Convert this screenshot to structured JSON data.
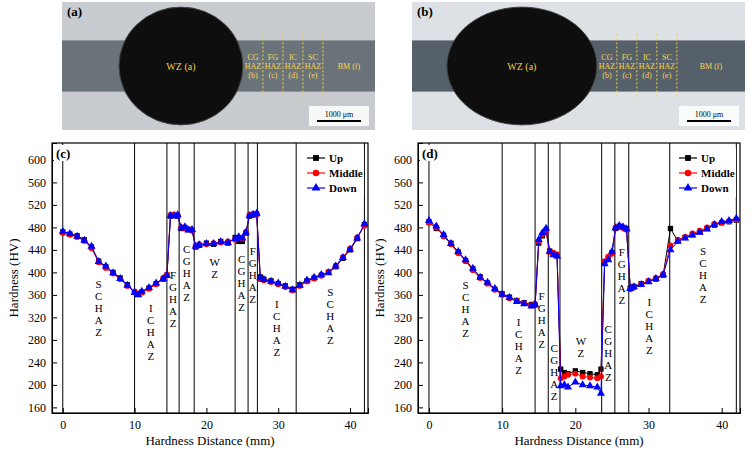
{
  "photos": [
    {
      "letter": "(a)",
      "weld_label": "WZ (a)",
      "zone_labels": [
        "CG HAZ (b)",
        "FG HAZ (c)",
        "IC HAZ (d)",
        "SC HAZ (e)"
      ],
      "base_label": "BM (f)",
      "scale_bar": "1000 μm"
    },
    {
      "letter": "(b)",
      "weld_label": "WZ (a)",
      "zone_labels": [
        "CG HAZ (b)",
        "FG HAZ (c)",
        "IC HAZ (d)",
        "SC HAZ (e)"
      ],
      "base_label": "BM (f)",
      "scale_bar": "1000 μm"
    }
  ],
  "chart_data": [
    {
      "type": "line",
      "panel_label": "(c)",
      "x_label": "Hardness Distance (mm)",
      "y_label": "Hardness (HV)",
      "xlim": [
        -1.5,
        42.5
      ],
      "xticks": [
        0,
        10,
        20,
        30,
        40
      ],
      "ylim": [
        150,
        630
      ],
      "yticks": [
        160,
        200,
        240,
        280,
        320,
        360,
        400,
        440,
        480,
        520,
        560,
        600
      ],
      "grid": false,
      "legend": "top-right",
      "boundaries": [
        0,
        10,
        14.5,
        16.2,
        18.3,
        24,
        25.8,
        27.1,
        32.5,
        42
      ],
      "regions": [
        "SCHAZ",
        "ICHAZ",
        "FGHAZ",
        "CGHAZ",
        "WZ",
        "CGHAZ",
        "FGHAZ",
        "ICHAZ",
        "SCHAZ"
      ],
      "x": [
        0,
        1,
        2,
        3,
        4,
        5,
        6,
        7,
        8,
        9,
        10,
        10.5,
        11,
        12,
        13,
        14,
        14.5,
        15,
        15.5,
        16,
        16.5,
        17,
        17.5,
        18,
        18.5,
        19,
        20,
        21,
        22,
        23,
        24,
        24.5,
        25,
        25.5,
        26,
        26.5,
        27,
        27.5,
        28,
        29,
        30,
        31,
        32,
        33,
        34,
        35,
        36,
        37,
        38,
        39,
        40,
        41,
        42
      ],
      "series": [
        {
          "name": "Up",
          "color": "#000000",
          "marker": "square",
          "values": [
            472,
            468,
            465,
            458,
            445,
            420,
            410,
            400,
            390,
            378,
            365,
            362,
            365,
            372,
            380,
            388,
            395,
            500,
            502,
            500,
            478,
            480,
            476,
            475,
            445,
            448,
            452,
            450,
            455,
            452,
            462,
            455,
            455,
            470,
            500,
            502,
            504,
            392,
            388,
            385,
            380,
            376,
            370,
            378,
            385,
            390,
            395,
            400,
            410,
            425,
            440,
            460,
            485
          ]
        },
        {
          "name": "Middle",
          "color": "#ff0000",
          "marker": "circle",
          "values": [
            470,
            467,
            463,
            456,
            443,
            418,
            408,
            398,
            388,
            376,
            366,
            361,
            364,
            371,
            379,
            390,
            396,
            502,
            503,
            501,
            480,
            478,
            477,
            474,
            447,
            450,
            450,
            452,
            453,
            455,
            458,
            462,
            460,
            472,
            502,
            504,
            503,
            388,
            386,
            383,
            379,
            374,
            368,
            376,
            384,
            389,
            394,
            401,
            412,
            427,
            442,
            462,
            483
          ]
        },
        {
          "name": "Down",
          "color": "#0000ff",
          "marker": "triangle",
          "values": [
            473,
            469,
            464,
            457,
            446,
            419,
            411,
            399,
            389,
            377,
            364,
            360,
            366,
            373,
            381,
            389,
            394,
            501,
            500,
            502,
            479,
            481,
            475,
            476,
            446,
            449,
            451,
            451,
            454,
            453,
            460,
            463,
            461,
            471,
            501,
            503,
            505,
            390,
            387,
            384,
            381,
            375,
            369,
            377,
            386,
            391,
            396,
            399,
            411,
            426,
            441,
            461,
            486
          ]
        }
      ]
    },
    {
      "type": "line",
      "panel_label": "(d)",
      "x_label": "Hardness Distance (mm)",
      "y_label": "Hardness (HV)",
      "xlim": [
        -1.5,
        42.5
      ],
      "xticks": [
        0,
        10,
        20,
        30,
        40
      ],
      "ylim": [
        150,
        630
      ],
      "yticks": [
        160,
        200,
        240,
        280,
        320,
        360,
        400,
        440,
        480,
        520,
        560,
        600
      ],
      "grid": false,
      "legend": "top-right",
      "boundaries": [
        0,
        10,
        14.5,
        16.3,
        17.9,
        23.6,
        25.4,
        27.3,
        32.9,
        42
      ],
      "regions": [
        "SCHAZ",
        "ICHAZ",
        "FGHAZ",
        "CGHAZ",
        "WZ",
        "CGHAZ",
        "FGHAZ",
        "ICHAZ",
        "SCHAZ"
      ],
      "x": [
        0,
        1,
        2,
        3,
        4,
        5,
        6,
        7,
        8,
        9,
        10,
        11,
        12,
        13,
        14,
        14.5,
        15,
        15.5,
        16,
        16.5,
        17,
        17.5,
        18,
        18.5,
        19,
        20,
        21,
        22,
        23,
        23.5,
        24,
        24.5,
        25,
        25.5,
        26,
        26.5,
        27,
        27.5,
        28,
        29,
        30,
        31,
        32,
        33,
        34,
        35,
        36,
        37,
        38,
        39,
        40,
        41,
        42
      ],
      "series": [
        {
          "name": "Up",
          "color": "#000000",
          "marker": "square",
          "values": [
            490,
            478,
            466,
            452,
            436,
            421,
            406,
            392,
            381,
            370,
            362,
            356,
            350,
            346,
            343,
            342,
            452,
            465,
            475,
            438,
            433,
            430,
            228,
            222,
            220,
            225,
            222,
            220,
            218,
            228,
            418,
            425,
            435,
            478,
            482,
            480,
            478,
            372,
            375,
            380,
            384,
            388,
            395,
            478,
            456,
            462,
            467,
            472,
            478,
            484,
            488,
            490,
            493
          ]
        },
        {
          "name": "Middle",
          "color": "#ff0000",
          "marker": "circle",
          "values": [
            488,
            480,
            464,
            450,
            434,
            420,
            404,
            390,
            380,
            369,
            360,
            354,
            349,
            345,
            341,
            344,
            455,
            468,
            472,
            436,
            435,
            432,
            212,
            215,
            218,
            220,
            215,
            213,
            212,
            215,
            420,
            428,
            433,
            480,
            481,
            479,
            476,
            370,
            373,
            379,
            385,
            390,
            397,
            448,
            458,
            463,
            469,
            474,
            480,
            486,
            489,
            491,
            494
          ]
        },
        {
          "name": "Down",
          "color": "#0000ff",
          "marker": "triangle",
          "values": [
            492,
            482,
            467,
            451,
            437,
            422,
            407,
            391,
            382,
            371,
            361,
            355,
            348,
            344,
            340,
            343,
            458,
            470,
            478,
            437,
            431,
            429,
            198,
            200,
            196,
            205,
            200,
            198,
            196,
            185,
            415,
            422,
            437,
            479,
            483,
            481,
            477,
            371,
            374,
            378,
            383,
            389,
            396,
            440,
            455,
            461,
            466,
            471,
            477,
            485,
            490,
            492,
            496
          ]
        }
      ]
    }
  ]
}
